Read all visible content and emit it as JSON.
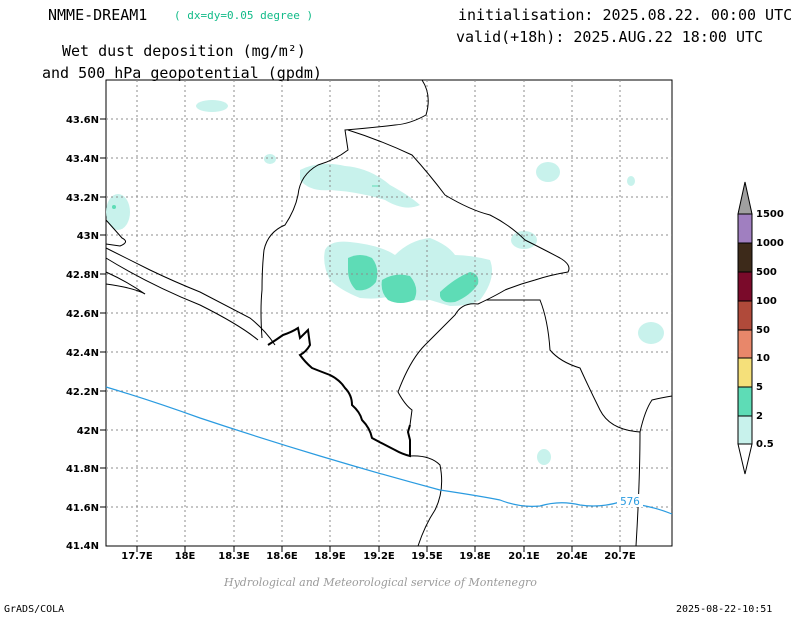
{
  "header": {
    "model": "NMME-DREAM1",
    "resolution": "( dx=dy=0.05 degree )",
    "title_line1": "Wet dust deposition (mg/m²)",
    "title_line2": "and 500 hPa geopotential (gpdm)",
    "initialisation": "initialisation: 2025.08.22. 00:00 UTC",
    "valid": "valid(+18h): 2025.AUG.22 18:00 UTC"
  },
  "map": {
    "lat_ticks": [
      "43.6N",
      "43.4N",
      "43.2N",
      "43N",
      "42.8N",
      "42.6N",
      "42.4N",
      "42.2N",
      "42N",
      "41.8N",
      "41.6N",
      "41.4N"
    ],
    "lon_ticks": [
      "17.7E",
      "18E",
      "18.3E",
      "18.6E",
      "18.9E",
      "19.2E",
      "19.5E",
      "19.8E",
      "20.1E",
      "20.4E",
      "20.7E"
    ],
    "contour_label": "576",
    "contour_color": "#2a9be0"
  },
  "legend": {
    "levels": [
      "1500",
      "1000",
      "500",
      "100",
      "50",
      "10",
      "5",
      "2",
      "0.5"
    ],
    "colors": [
      "#a07fc0",
      "#3d2a1a",
      "#7a0a2a",
      "#b04a3a",
      "#e8876a",
      "#f5e07a",
      "#5edcb6",
      "#c8f2ec"
    ],
    "top_arrow_color": "#a0a0a0"
  },
  "credit": "Hydrological and Meteorological service of Montenegro",
  "footer": {
    "left": "GrADS/COLA",
    "right": "2025-08-22-10:51"
  }
}
